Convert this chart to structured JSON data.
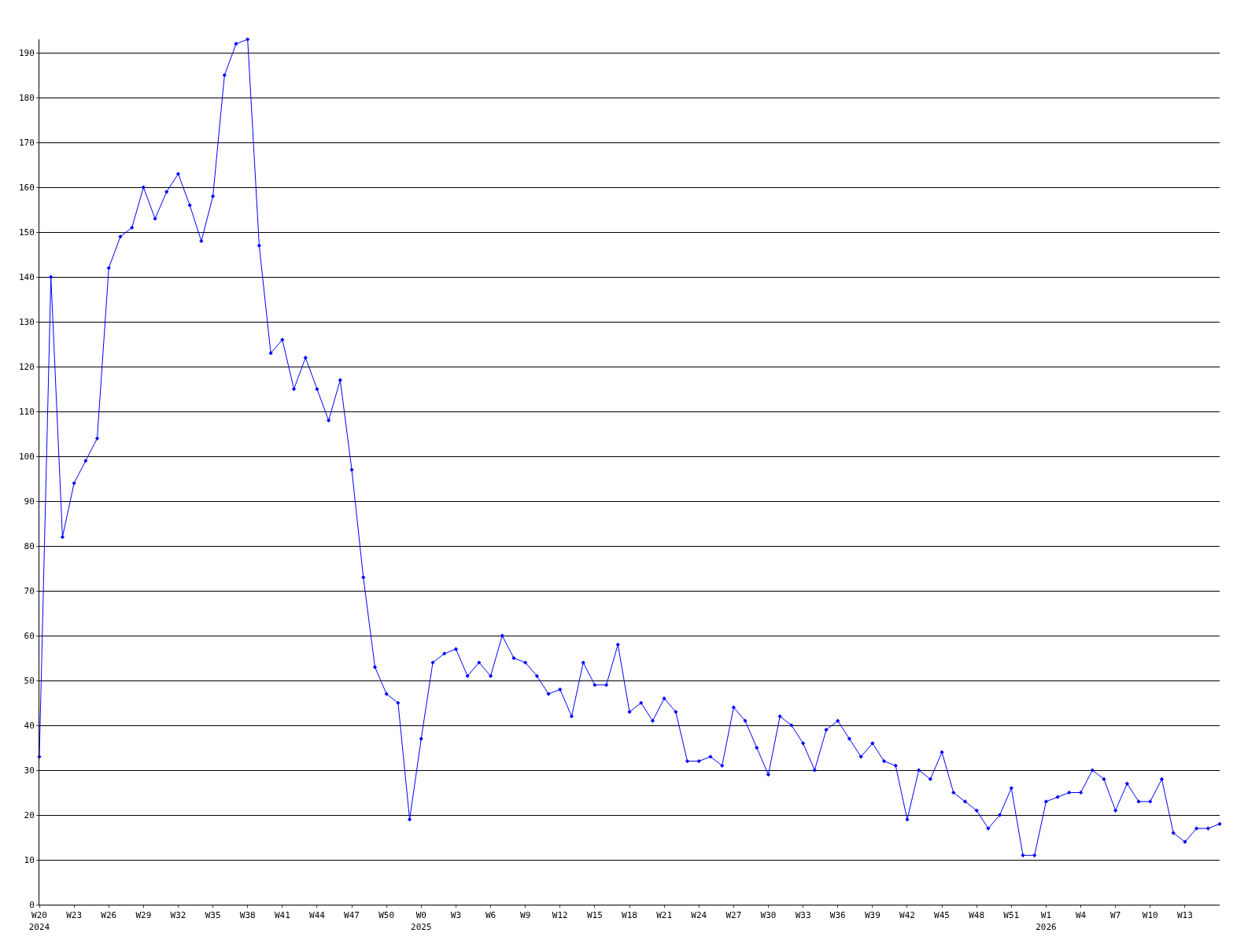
{
  "chart_data": {
    "type": "line",
    "categories": [
      "W20\n2024",
      null,
      null,
      "W23",
      null,
      null,
      "W26",
      null,
      null,
      "W29",
      null,
      null,
      "W32",
      null,
      null,
      "W35",
      null,
      null,
      "W38",
      null,
      null,
      "W41",
      null,
      null,
      "W44",
      null,
      null,
      "W47",
      null,
      null,
      "W50",
      null,
      null,
      "W0\n2025",
      null,
      null,
      "W3",
      null,
      null,
      "W6",
      null,
      null,
      "W9",
      null,
      null,
      "W12",
      null,
      null,
      "W15",
      null,
      null,
      "W18",
      null,
      null,
      "W21",
      null,
      null,
      "W24",
      null,
      null,
      "W27",
      null,
      null,
      "W30",
      null,
      null,
      "W33",
      null,
      null,
      "W36",
      null,
      null,
      "W39",
      null,
      null,
      "W42",
      null,
      null,
      "W45",
      null,
      null,
      "W48",
      null,
      null,
      "W51",
      null,
      null,
      "W1\n2026",
      null,
      null,
      "W4",
      null,
      null,
      "W7",
      null,
      null,
      "W10",
      null,
      null,
      "W13",
      null,
      null,
      null
    ],
    "series": [
      {
        "color": "#0000ff",
        "values": [
          33,
          140,
          82,
          94,
          99,
          104,
          142,
          149,
          151,
          160,
          153,
          159,
          163,
          156,
          148,
          158,
          185,
          192,
          193,
          147,
          123,
          126,
          115,
          122,
          115,
          108,
          117,
          97,
          73,
          53,
          47,
          45,
          19,
          37,
          54,
          56,
          57,
          51,
          54,
          51,
          60,
          55,
          54,
          51,
          47,
          48,
          42,
          54,
          49,
          49,
          58,
          43,
          45,
          41,
          46,
          43,
          32,
          32,
          33,
          31,
          44,
          41,
          35,
          29,
          42,
          40,
          36,
          30,
          39,
          41,
          37,
          33,
          36,
          32,
          31,
          19,
          30,
          28,
          34,
          25,
          23,
          21,
          17,
          20,
          26,
          11,
          11,
          23,
          24,
          25,
          25,
          30,
          28,
          21,
          27,
          23,
          23,
          28,
          16,
          14,
          17,
          17,
          18
        ]
      }
    ],
    "ylim": [
      0,
      193
    ],
    "yticks": [
      0,
      10,
      20,
      30,
      40,
      50,
      60,
      70,
      80,
      90,
      100,
      110,
      120,
      130,
      140,
      150,
      160,
      170,
      180,
      190
    ],
    "grid": "y",
    "marker": "diamond",
    "line_style": "solid"
  }
}
